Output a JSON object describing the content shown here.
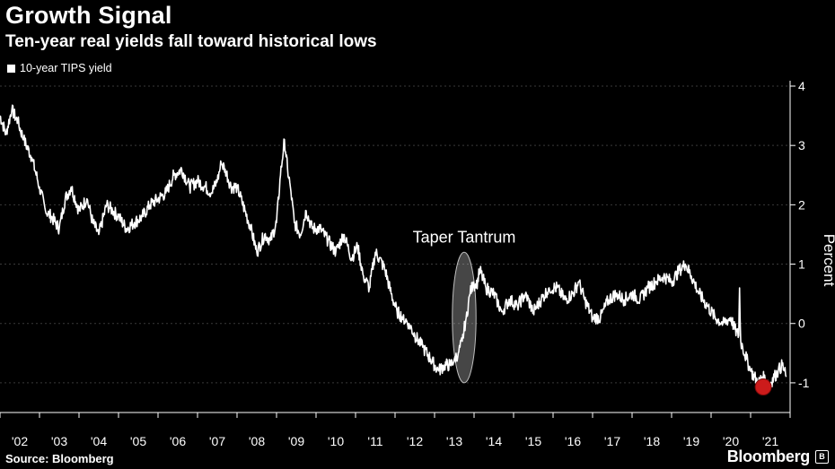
{
  "header": {
    "title": "Growth Signal",
    "subtitle": "Ten-year real yields fall toward historical lows"
  },
  "legend": {
    "label": "10-year TIPS yield"
  },
  "footer": {
    "source": "Source: Bloomberg",
    "brand": "Bloomberg",
    "brand_icon": "B"
  },
  "colors": {
    "background": "#000000",
    "line": "#ffffff",
    "grid": "#3a3a3a",
    "highlight_fill": "#cc1b1b",
    "ellipse_stroke": "#bdbdbd"
  },
  "chart_data": {
    "type": "line",
    "title": "Growth Signal",
    "subtitle": "Ten-year real yields fall toward historical lows",
    "xlabel": "",
    "ylabel": "Percent",
    "ylim": [
      -1.5,
      4
    ],
    "xlim": [
      2001.5,
      2021.5
    ],
    "y_ticks": [
      4,
      3,
      2,
      1,
      0,
      -1
    ],
    "y_tick_labels": [
      "4",
      "3",
      "2",
      "1",
      "0",
      "-1"
    ],
    "x_ticks": [
      2002,
      2003,
      2004,
      2005,
      2006,
      2007,
      2008,
      2009,
      2010,
      2011,
      2012,
      2013,
      2014,
      2015,
      2016,
      2017,
      2018,
      2019,
      2020,
      2021
    ],
    "x_tick_labels": [
      "'02",
      "'03",
      "'04",
      "'05",
      "'06",
      "'07",
      "'08",
      "'09",
      "'10",
      "'11",
      "'12",
      "'13",
      "'14",
      "'15",
      "'16",
      "'17",
      "'18",
      "'19",
      "'20",
      "'21"
    ],
    "grid": "horizontal dashed",
    "y_axis_position": "right",
    "legend_position": "top-left",
    "series": [
      {
        "name": "10-year TIPS yield",
        "x": [
          2001.5,
          2001.65,
          2001.8,
          2001.95,
          2002.1,
          2002.3,
          2002.5,
          2002.65,
          2002.8,
          2003.0,
          2003.15,
          2003.3,
          2003.5,
          2003.7,
          2003.85,
          2004.0,
          2004.2,
          2004.35,
          2004.5,
          2004.7,
          2004.9,
          2005.1,
          2005.3,
          2005.5,
          2005.7,
          2005.9,
          2006.1,
          2006.3,
          2006.5,
          2006.7,
          2006.85,
          2007.0,
          2007.1,
          2007.2,
          2007.35,
          2007.5,
          2007.7,
          2007.85,
          2008.0,
          2008.2,
          2008.35,
          2008.5,
          2008.6,
          2008.7,
          2008.78,
          2008.85,
          2008.95,
          2009.1,
          2009.25,
          2009.4,
          2009.6,
          2009.8,
          2010.0,
          2010.2,
          2010.4,
          2010.55,
          2010.7,
          2010.85,
          2011.0,
          2011.1,
          2011.25,
          2011.4,
          2011.55,
          2011.7,
          2011.85,
          2012.0,
          2012.2,
          2012.4,
          2012.6,
          2012.75,
          2012.9,
          2013.0,
          2013.1,
          2013.2,
          2013.3,
          2013.4,
          2013.48,
          2013.55,
          2013.65,
          2013.8,
          2014.0,
          2014.2,
          2014.4,
          2014.6,
          2014.8,
          2015.0,
          2015.2,
          2015.4,
          2015.6,
          2015.8,
          2016.0,
          2016.15,
          2016.3,
          2016.5,
          2016.7,
          2016.9,
          2017.1,
          2017.3,
          2017.5,
          2017.7,
          2017.9,
          2018.1,
          2018.3,
          2018.5,
          2018.7,
          2018.85,
          2019.0,
          2019.2,
          2019.4,
          2019.6,
          2019.8,
          2020.0,
          2020.1,
          2020.2,
          2020.22,
          2020.25,
          2020.3,
          2020.4,
          2020.5,
          2020.6,
          2020.7,
          2020.8,
          2020.95,
          2021.0,
          2021.1,
          2021.2,
          2021.3,
          2021.4
        ],
        "values": [
          3.5,
          3.2,
          3.6,
          3.4,
          3.1,
          2.8,
          2.3,
          1.9,
          1.8,
          1.6,
          2.1,
          2.3,
          1.9,
          2.1,
          1.7,
          1.5,
          2.0,
          1.9,
          1.8,
          1.6,
          1.7,
          1.8,
          2.0,
          2.1,
          2.2,
          2.5,
          2.6,
          2.3,
          2.4,
          2.3,
          2.2,
          2.4,
          2.7,
          2.6,
          2.3,
          2.3,
          1.9,
          1.6,
          1.2,
          1.5,
          1.4,
          1.7,
          2.5,
          3.1,
          2.6,
          2.3,
          1.7,
          1.5,
          1.9,
          1.6,
          1.6,
          1.4,
          1.2,
          1.5,
          1.1,
          1.3,
          0.8,
          0.6,
          1.2,
          1.1,
          0.9,
          0.5,
          0.2,
          0.1,
          0.0,
          -0.2,
          -0.4,
          -0.6,
          -0.8,
          -0.7,
          -0.7,
          -0.6,
          -0.5,
          -0.3,
          0.1,
          0.5,
          0.7,
          0.6,
          0.9,
          0.6,
          0.5,
          0.2,
          0.4,
          0.3,
          0.5,
          0.2,
          0.4,
          0.6,
          0.6,
          0.4,
          0.5,
          0.7,
          0.4,
          0.1,
          0.1,
          0.4,
          0.5,
          0.4,
          0.5,
          0.4,
          0.6,
          0.7,
          0.8,
          0.7,
          0.9,
          1.0,
          0.8,
          0.5,
          0.3,
          0.1,
          0.0,
          0.1,
          -0.1,
          -0.2,
          0.6,
          -0.3,
          -0.4,
          -0.6,
          -0.8,
          -0.9,
          -1.0,
          -0.9,
          -1.0,
          -1.0,
          -0.9,
          -0.8,
          -0.7,
          -0.9
        ]
      }
    ],
    "annotations": [
      {
        "text": "Taper Tantrum",
        "shape": "ellipse",
        "x_range": [
          2012.95,
          2013.55
        ],
        "y_range": [
          -1.0,
          1.2
        ]
      },
      {
        "text": "",
        "shape": "circle-marker",
        "x": 2020.82,
        "y": -1.07
      }
    ]
  }
}
